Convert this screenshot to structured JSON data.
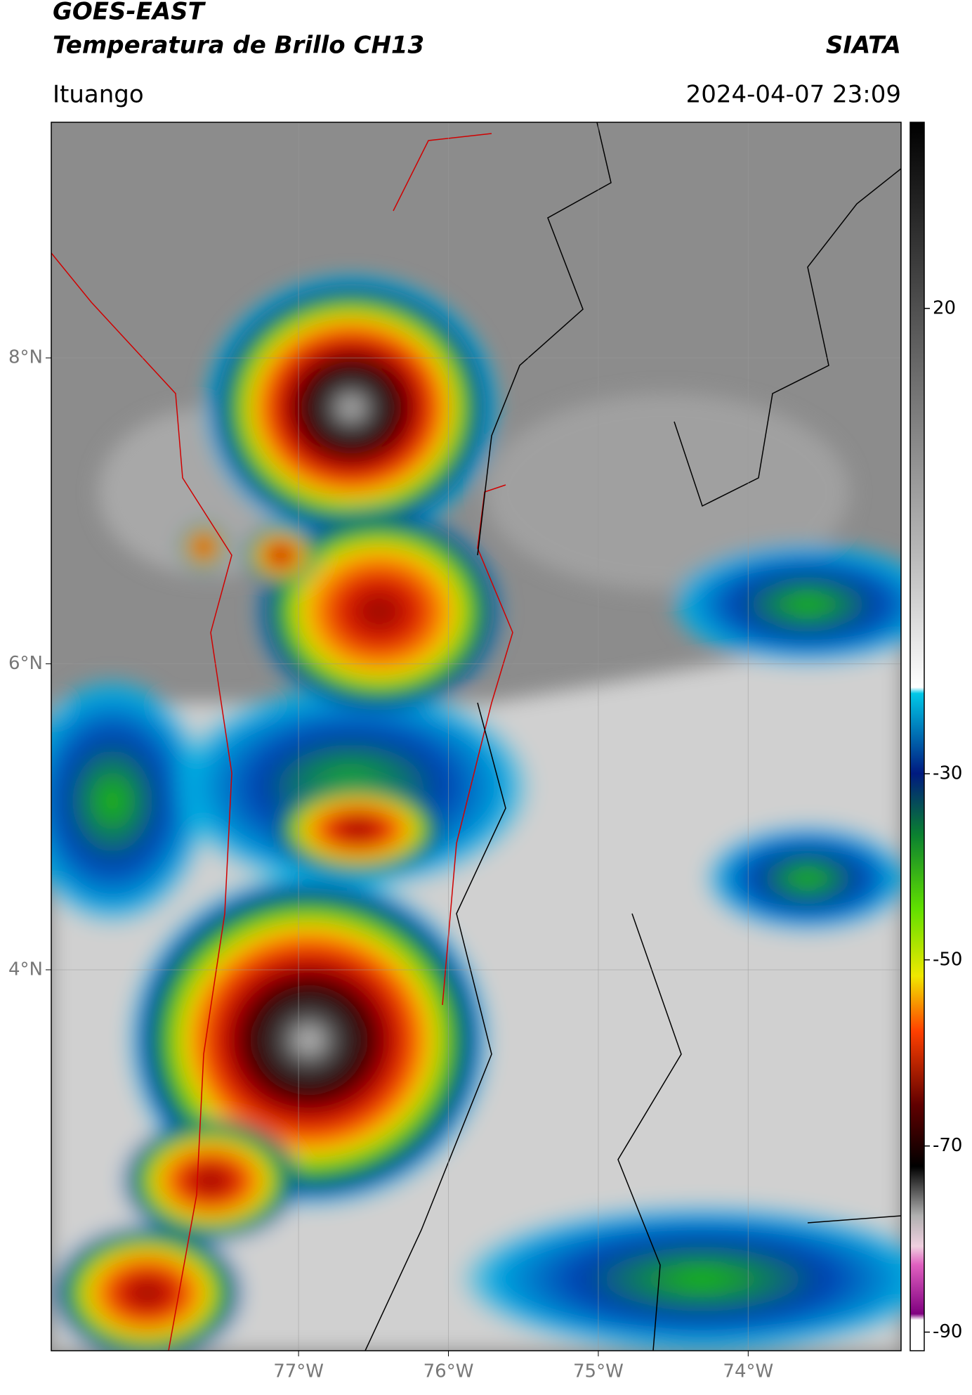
{
  "header": {
    "title": "GOES-EAST",
    "subtitle": "Temperatura de Brillo CH13",
    "source": "SIATA",
    "location": "Ituango",
    "datetime": "2024-04-07 23:09"
  },
  "map": {
    "xlim": [
      -78.65,
      -72.98
    ],
    "ylim": [
      1.51,
      9.54
    ],
    "xticks": [
      {
        "value": -77,
        "label": "77°W"
      },
      {
        "value": -76,
        "label": "76°W"
      },
      {
        "value": -75,
        "label": "75°W"
      },
      {
        "value": -74,
        "label": "74°W"
      }
    ],
    "yticks": [
      {
        "value": 8,
        "label": "8°N"
      },
      {
        "value": 6,
        "label": "6°N"
      },
      {
        "value": 4,
        "label": "4°N"
      }
    ],
    "grid": true
  },
  "colorbar": {
    "lim": [
      -92,
      40
    ],
    "ticks": [
      20,
      -30,
      -50,
      -70,
      -90
    ]
  }
}
